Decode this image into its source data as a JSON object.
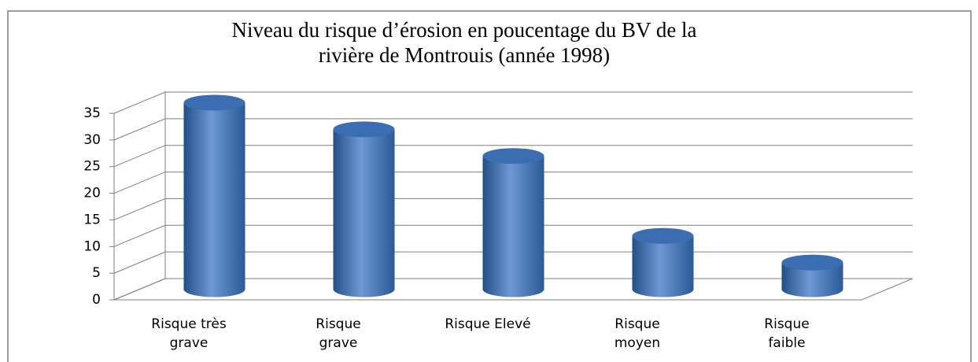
{
  "chart_data": {
    "type": "bar3d",
    "title": "Niveau du risque d’érosion en poucentage du BV de la rivière de Montrouis (année 1998)",
    "categories": [
      "Risque très\ngrave",
      "Risque\ngrave",
      "Risque Elevé",
      "Risque\nmoyen",
      "Risque\nfaible"
    ],
    "values": [
      35,
      30,
      25,
      10,
      5
    ],
    "color": "#4f81bd",
    "ylim": [
      0,
      35
    ],
    "yticks": [
      0,
      5,
      10,
      15,
      20,
      25,
      30,
      35
    ],
    "grid": true
  }
}
